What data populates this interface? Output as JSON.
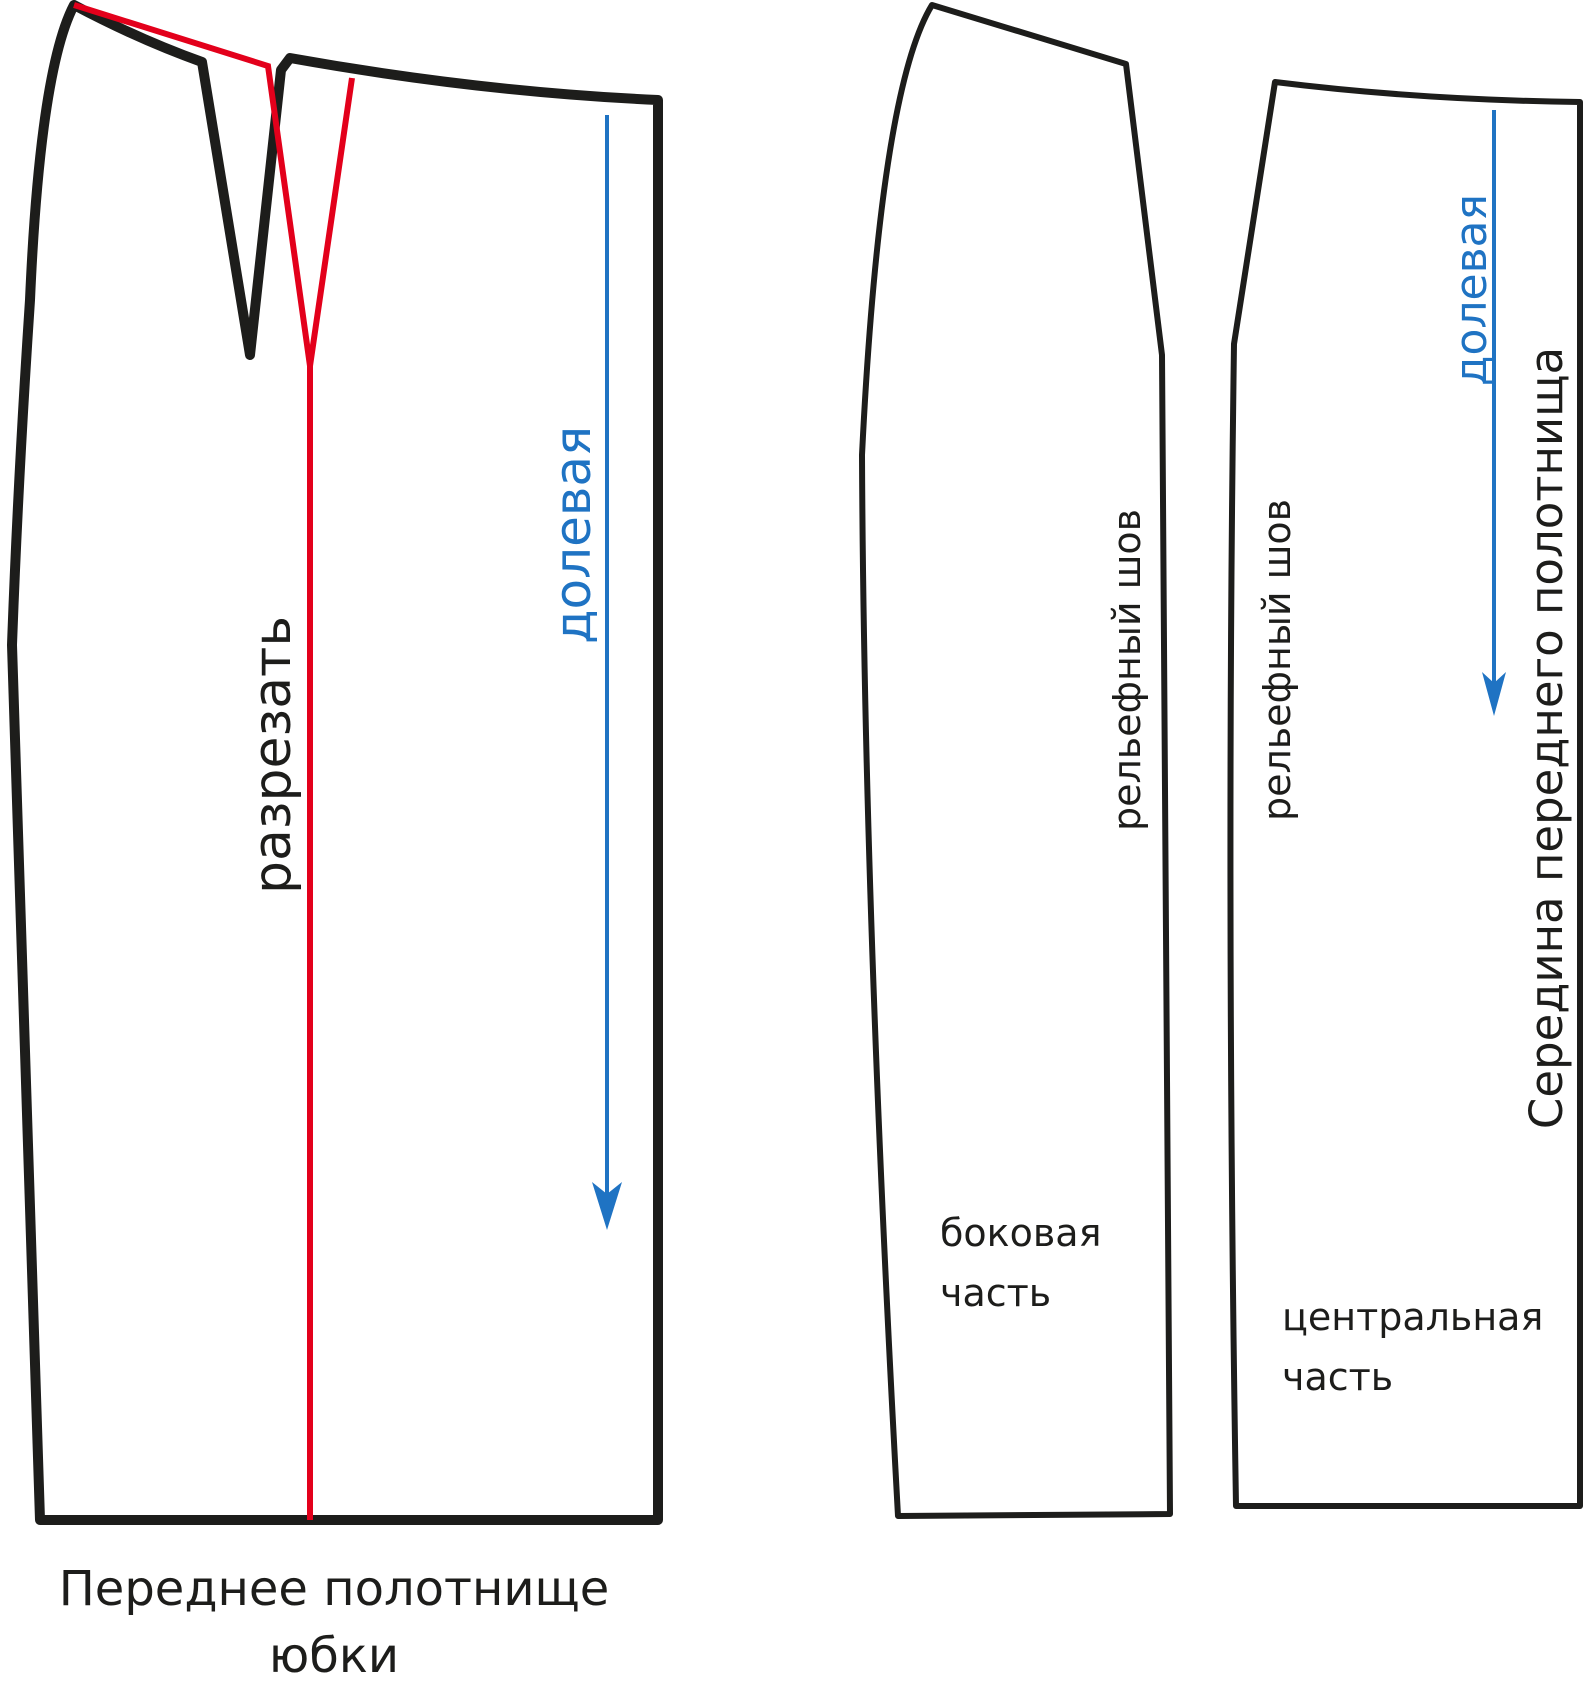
{
  "colors": {
    "outline": "#1d1d1b",
    "cut_line": "#e3001b",
    "grain_line": "#1f73c3",
    "background": "#ffffff"
  },
  "labels": {
    "cut": "разрезать",
    "grain_front": "долевая",
    "grain_center": "долевая",
    "front_caption_line1": "Переднее полотнище",
    "front_caption_line2": "юбки",
    "relief_seam_side": "рельефный шов",
    "relief_seam_center": "рельефный шов",
    "side_part_line1": "боковая",
    "side_part_line2": "часть",
    "center_part_line1": "центральная",
    "center_part_line2": "часть",
    "center_front": "Середина переднего полотнища"
  },
  "icons": {
    "grain_arrow": "arrow-down-icon"
  }
}
